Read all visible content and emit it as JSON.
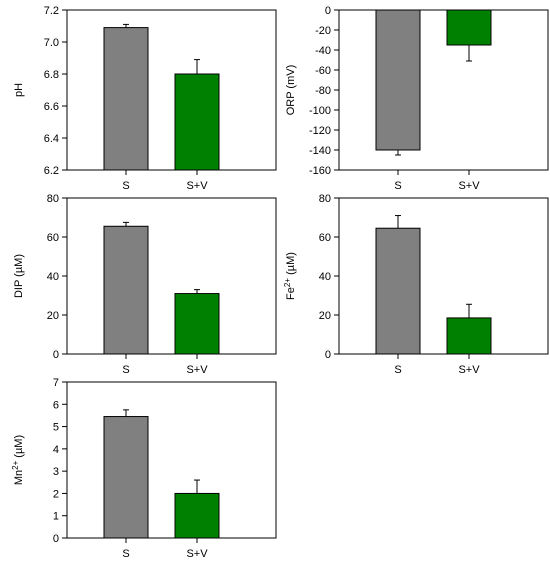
{
  "chart_data": [
    {
      "type": "bar",
      "categories": [
        "S",
        "S+V"
      ],
      "values": [
        7.09,
        6.8
      ],
      "errors": [
        0.02,
        0.09
      ],
      "ylabel": "pH",
      "ylabel_superscript": "",
      "ylabel_suffix": "",
      "ylim": [
        6.2,
        7.2
      ],
      "yticks": [
        6.2,
        6.4,
        6.6,
        6.8,
        7.0,
        7.2
      ],
      "yticklabels": [
        "6.2",
        "6.4",
        "6.6",
        "6.8",
        "7.0",
        "7.2"
      ],
      "colors": [
        "#808080",
        "#008000"
      ],
      "grid": false
    },
    {
      "type": "bar",
      "categories": [
        "S",
        "S+V"
      ],
      "values": [
        -140,
        -35
      ],
      "errors": [
        5,
        16
      ],
      "ylabel": "ORP (mV)",
      "ylabel_superscript": "",
      "ylabel_suffix": "",
      "ylim": [
        -160,
        0
      ],
      "yticks": [
        -160,
        -140,
        -120,
        -100,
        -80,
        -60,
        -40,
        -20,
        0
      ],
      "yticklabels": [
        "-160",
        "-140",
        "-120",
        "-100",
        "-80",
        "-60",
        "-40",
        "-20",
        "0"
      ],
      "colors": [
        "#808080",
        "#008000"
      ],
      "grid": false
    },
    {
      "type": "bar",
      "categories": [
        "S",
        "S+V"
      ],
      "values": [
        65.5,
        31
      ],
      "errors": [
        2,
        2
      ],
      "ylabel": "DIP (µM)",
      "ylabel_superscript": "",
      "ylabel_suffix": "",
      "ylim": [
        0,
        80
      ],
      "yticks": [
        0,
        20,
        40,
        60,
        80
      ],
      "yticklabels": [
        "0",
        "20",
        "40",
        "60",
        "80"
      ],
      "colors": [
        "#808080",
        "#008000"
      ],
      "grid": false
    },
    {
      "type": "bar",
      "categories": [
        "S",
        "S+V"
      ],
      "values": [
        64.5,
        18.5
      ],
      "errors": [
        6.5,
        7
      ],
      "ylabel": "Fe",
      "ylabel_superscript": "2+",
      "ylabel_suffix": " (µM)",
      "ylim": [
        0,
        80
      ],
      "yticks": [
        0,
        20,
        40,
        60,
        80
      ],
      "yticklabels": [
        "0",
        "20",
        "40",
        "60",
        "80"
      ],
      "colors": [
        "#808080",
        "#008000"
      ],
      "grid": false
    },
    {
      "type": "bar",
      "categories": [
        "S",
        "S+V"
      ],
      "values": [
        5.45,
        2.0
      ],
      "errors": [
        0.3,
        0.6
      ],
      "ylabel": "Mn",
      "ylabel_superscript": "2+",
      "ylabel_suffix": " (µM)",
      "ylim": [
        0,
        7
      ],
      "yticks": [
        0,
        1,
        2,
        3,
        4,
        5,
        6,
        7
      ],
      "yticklabels": [
        "0",
        "1",
        "2",
        "3",
        "4",
        "5",
        "6",
        "7"
      ],
      "colors": [
        "#808080",
        "#008000"
      ],
      "grid": false
    }
  ]
}
